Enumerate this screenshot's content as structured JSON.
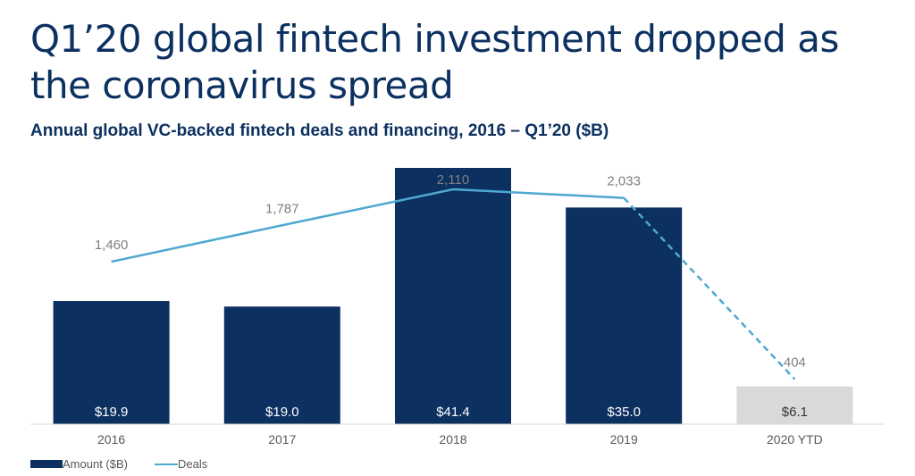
{
  "title": "Q1’20 global fintech investment dropped as the coronavirus spread",
  "chart_data": {
    "type": "bar",
    "title": "Annual global VC-backed fintech deals and financing, 2016 – Q1’20 ($B)",
    "categories": [
      "2016",
      "2017",
      "2018",
      "2019",
      "2020 YTD"
    ],
    "series": [
      {
        "name": "Amount ($B)",
        "kind": "bar",
        "values": [
          19.9,
          19.0,
          41.4,
          35.0,
          6.1
        ],
        "labels": [
          "$19.9",
          "$19.0",
          "$41.4",
          "$35.0",
          "$6.1"
        ]
      },
      {
        "name": "Deals",
        "kind": "line",
        "values": [
          1460,
          1787,
          2110,
          2033,
          404
        ],
        "labels": [
          "1,460",
          "1,787",
          "2,110",
          "2,033",
          "404"
        ],
        "dashed_from_index": 3
      }
    ],
    "highlight_index": 4,
    "ylim_amount": [
      0,
      45
    ],
    "ylim_deals": [
      0,
      2500
    ],
    "colors": {
      "bar": "#0c3060",
      "bar_partial": "#d9d9d9",
      "line": "#4ea8cf",
      "bar_text": "#ffffff",
      "bar_partial_text": "#333333"
    },
    "legend": {
      "position": "bottom-left"
    }
  }
}
